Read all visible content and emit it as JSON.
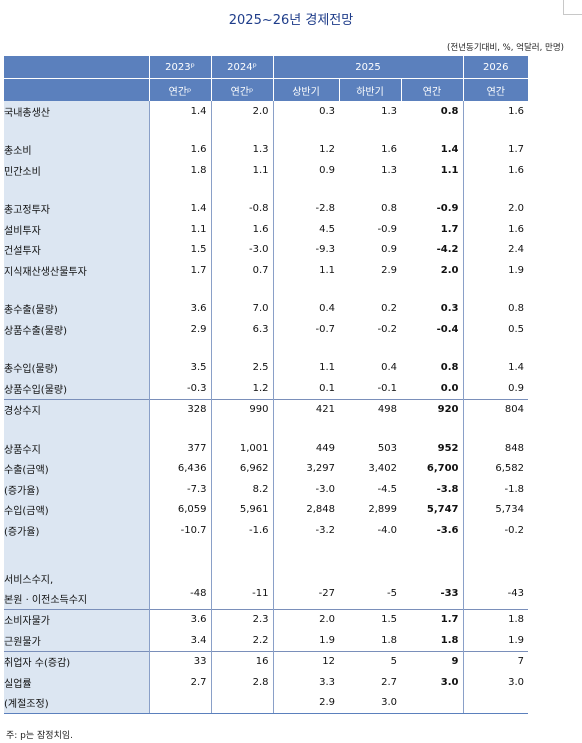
{
  "title": "2025~26년 경제전망",
  "unit_note": "(전년동기대비, %, 억달러, 만명)",
  "footnote": "주: p는 잠정치임.",
  "header": {
    "years": [
      "2023ᵖ",
      "2024ᵖ",
      "2025",
      "2026"
    ],
    "subs": [
      "연간ᵖ",
      "연간ᵖ",
      "상반기",
      "하반기",
      "연간",
      "연간"
    ]
  },
  "rows": [
    {
      "label": "국내총생산",
      "indent": 0,
      "values": [
        "1.4",
        "2.0",
        "0.3",
        "1.3",
        "0.8",
        "1.6"
      ]
    },
    {
      "label": "",
      "indent": 0,
      "values": [
        "",
        "",
        "",
        "",
        "",
        ""
      ]
    },
    {
      "label": "총소비",
      "indent": 0,
      "values": [
        "1.6",
        "1.3",
        "1.2",
        "1.6",
        "1.4",
        "1.7"
      ]
    },
    {
      "label": "민간소비",
      "indent": 2,
      "values": [
        "1.8",
        "1.1",
        "0.9",
        "1.3",
        "1.1",
        "1.6"
      ]
    },
    {
      "label": "",
      "indent": 0,
      "values": [
        "",
        "",
        "",
        "",
        "",
        ""
      ]
    },
    {
      "label": "총고정투자",
      "indent": 0,
      "values": [
        "1.4",
        "-0.8",
        "-2.8",
        "0.8",
        "-0.9",
        "2.0"
      ]
    },
    {
      "label": "설비투자",
      "indent": 2,
      "values": [
        "1.1",
        "1.6",
        "4.5",
        "-0.9",
        "1.7",
        "1.6"
      ]
    },
    {
      "label": "건설투자",
      "indent": 2,
      "values": [
        "1.5",
        "-3.0",
        "-9.3",
        "0.9",
        "-4.2",
        "2.4"
      ]
    },
    {
      "label": "지식재산생산물투자",
      "indent": 2,
      "values": [
        "1.7",
        "0.7",
        "1.1",
        "2.9",
        "2.0",
        "1.9"
      ]
    },
    {
      "label": "",
      "indent": 0,
      "values": [
        "",
        "",
        "",
        "",
        "",
        ""
      ]
    },
    {
      "label": "총수출(물량)",
      "indent": 0,
      "values": [
        "3.6",
        "7.0",
        "0.4",
        "0.2",
        "0.3",
        "0.8"
      ]
    },
    {
      "label": "상품수출(물량)",
      "indent": 2,
      "values": [
        "2.9",
        "6.3",
        "-0.7",
        "-0.2",
        "-0.4",
        "0.5"
      ]
    },
    {
      "label": "",
      "indent": 0,
      "values": [
        "",
        "",
        "",
        "",
        "",
        ""
      ]
    },
    {
      "label": "총수입(물량)",
      "indent": 0,
      "values": [
        "3.5",
        "2.5",
        "1.1",
        "0.4",
        "0.8",
        "1.4"
      ]
    },
    {
      "label": "상품수입(물량)",
      "indent": 3,
      "values": [
        "-0.3",
        "1.2",
        "0.1",
        "-0.1",
        "0.0",
        "0.9"
      ]
    },
    {
      "label": "경상수지",
      "indent": 0,
      "values": [
        "328",
        "990",
        "421",
        "498",
        "920",
        "804"
      ]
    },
    {
      "label": "",
      "indent": 0,
      "values": [
        "",
        "",
        "",
        "",
        "",
        ""
      ]
    },
    {
      "label": "상품수지",
      "indent": 1,
      "values": [
        "377",
        "1,001",
        "449",
        "503",
        "952",
        "848"
      ]
    },
    {
      "label": "수출(금액)",
      "indent": 2,
      "values": [
        "6,436",
        "6,962",
        "3,297",
        "3,402",
        "6,700",
        "6,582"
      ]
    },
    {
      "label": "(증가율)",
      "indent": 3,
      "values": [
        "-7.3",
        "8.2",
        "-3.0",
        "-4.5",
        "-3.8",
        "-1.8"
      ]
    },
    {
      "label": "수입(금액)",
      "indent": 2,
      "values": [
        "6,059",
        "5,961",
        "2,848",
        "2,899",
        "5,747",
        "5,734"
      ]
    },
    {
      "label": "(증가율)",
      "indent": 3,
      "values": [
        "-10.7",
        "-1.6",
        "-3.2",
        "-4.0",
        "-3.6",
        "-0.2"
      ]
    },
    {
      "label": "",
      "indent": 0,
      "values": [
        "",
        "",
        "",
        "",
        "",
        ""
      ]
    },
    {
      "label": "서비스수지,",
      "label2": "본원 · 이전소득수지",
      "indent": 2,
      "values": [
        "-48",
        "-11",
        "-27",
        "-5",
        "-33",
        "-43"
      ]
    },
    {
      "label": "소비자물가",
      "indent": 0,
      "values": [
        "3.6",
        "2.3",
        "2.0",
        "1.5",
        "1.7",
        "1.8"
      ]
    },
    {
      "label": "근원물가",
      "indent": 0,
      "values": [
        "3.4",
        "2.2",
        "1.9",
        "1.8",
        "1.8",
        "1.9"
      ]
    },
    {
      "label": "취업자 수(증감)",
      "indent": 0,
      "values": [
        "33",
        "16",
        "12",
        "5",
        "9",
        "7"
      ]
    },
    {
      "label": "실업률",
      "indent": 0,
      "values": [
        "2.7",
        "2.8",
        "3.3",
        "2.7",
        "3.0",
        "3.0"
      ]
    },
    {
      "label": "(계절조정)",
      "indent": 0,
      "values": [
        "",
        "",
        "2.9",
        "3.0",
        "",
        ""
      ]
    }
  ]
}
